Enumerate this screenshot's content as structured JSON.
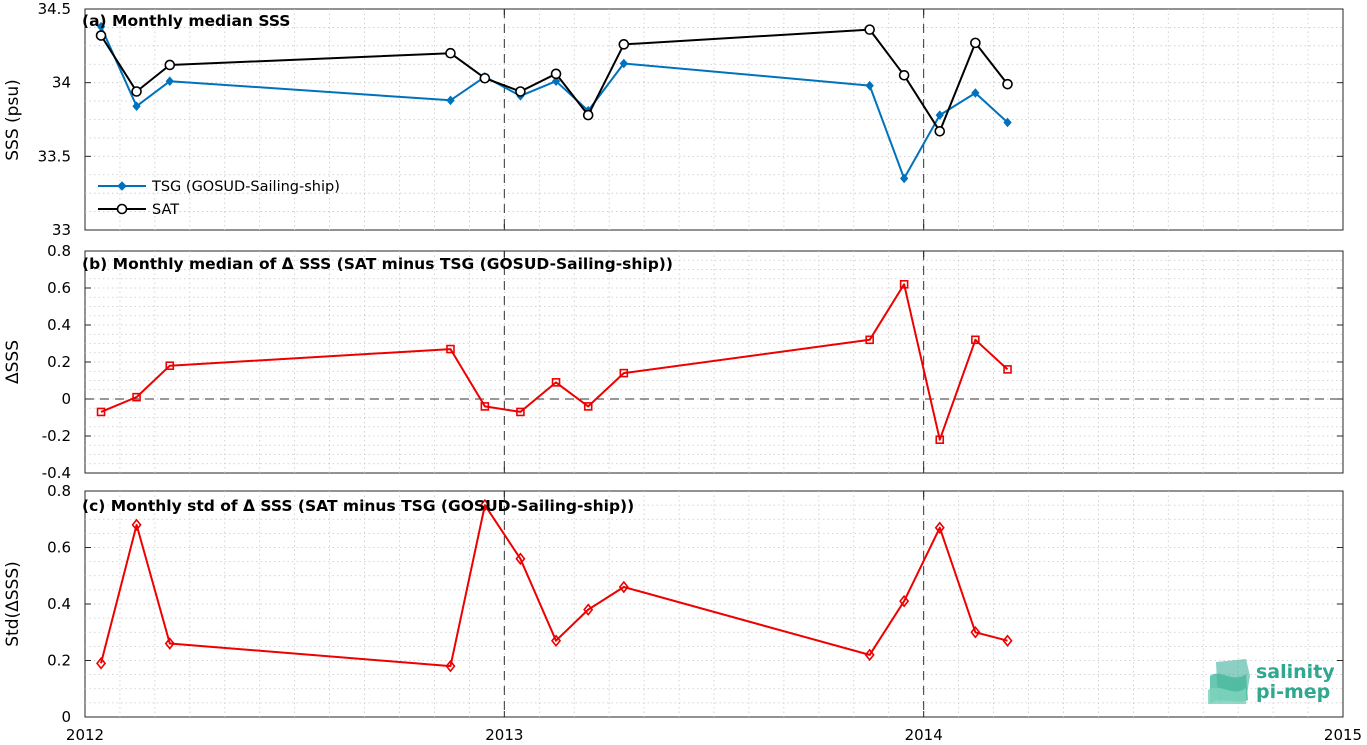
{
  "chart_data": [
    {
      "panel": "a",
      "type": "line",
      "title": "(a) Monthly median SSS",
      "ylabel": "SSS (psu)",
      "ylim": [
        33,
        34.5
      ],
      "yticks": [
        "33",
        "33.5",
        "34",
        "34.5"
      ],
      "xlim": [
        "2012-01-01",
        "2015-01-01"
      ],
      "xticks": [
        "2012",
        "2013",
        "2014",
        "2015"
      ],
      "grid": true,
      "legend_position": "lower-left",
      "dashed_lines_x": [
        "2013-01-01",
        "2014-01-01"
      ],
      "series": [
        {
          "name": "TSG (GOSUD-Sailing-ship)",
          "color": "#0072bd",
          "marker": "diamond",
          "x": [
            "2012-01-15",
            "2012-02-15",
            "2012-03-15",
            "2012-11-15",
            "2012-12-15",
            "2013-01-15",
            "2013-02-15",
            "2013-03-15",
            "2013-04-15",
            "2013-11-15",
            "2013-12-15",
            "2014-01-15",
            "2014-02-15",
            "2014-03-15"
          ],
          "values": [
            34.38,
            33.84,
            34.01,
            33.88,
            34.04,
            33.91,
            34.01,
            33.81,
            34.13,
            33.98,
            33.35,
            33.78,
            33.93,
            33.73
          ]
        },
        {
          "name": "SAT",
          "color": "#000000",
          "marker": "circle",
          "x": [
            "2012-01-15",
            "2012-02-15",
            "2012-03-15",
            "2012-11-15",
            "2012-12-15",
            "2013-01-15",
            "2013-02-15",
            "2013-03-15",
            "2013-04-15",
            "2013-11-15",
            "2013-12-15",
            "2014-01-15",
            "2014-02-15",
            "2014-03-15"
          ],
          "values": [
            34.32,
            33.94,
            34.12,
            34.2,
            34.03,
            33.94,
            34.06,
            33.78,
            34.26,
            34.36,
            34.05,
            33.67,
            34.27,
            33.99
          ]
        }
      ]
    },
    {
      "panel": "b",
      "type": "line",
      "title": "(b) Monthly median of Δ SSS (SAT minus TSG (GOSUD-Sailing-ship))",
      "ylabel": "ΔSSS",
      "ylim": [
        -0.4,
        0.8
      ],
      "yticks": [
        "-0.4",
        "-0.2",
        "0",
        "0.2",
        "0.4",
        "0.6",
        "0.8"
      ],
      "xlim": [
        "2012-01-01",
        "2015-01-01"
      ],
      "grid": true,
      "dashed_lines_x": [
        "2013-01-01",
        "2014-01-01"
      ],
      "dashed_line_y": 0,
      "series": [
        {
          "color": "#ee0000",
          "marker": "square",
          "x": [
            "2012-01-15",
            "2012-02-15",
            "2012-03-15",
            "2012-11-15",
            "2012-12-15",
            "2013-01-15",
            "2013-02-15",
            "2013-03-15",
            "2013-04-15",
            "2013-11-15",
            "2013-12-15",
            "2014-01-15",
            "2014-02-15",
            "2014-03-15"
          ],
          "values": [
            -0.07,
            0.01,
            0.18,
            0.27,
            -0.04,
            -0.07,
            0.09,
            -0.04,
            0.14,
            0.32,
            0.62,
            -0.22,
            0.32,
            0.16
          ]
        }
      ]
    },
    {
      "panel": "c",
      "type": "line",
      "title": "(c) Monthly std of Δ SSS (SAT minus TSG (GOSUD-Sailing-ship))",
      "ylabel": "Std(ΔSSS)",
      "ylim": [
        0,
        0.8
      ],
      "yticks": [
        "0",
        "0.2",
        "0.4",
        "0.6",
        "0.8"
      ],
      "xlim": [
        "2012-01-01",
        "2015-01-01"
      ],
      "grid": true,
      "dashed_lines_x": [
        "2013-01-01",
        "2014-01-01"
      ],
      "series": [
        {
          "color": "#ee0000",
          "marker": "diamond-open",
          "x": [
            "2012-01-15",
            "2012-02-15",
            "2012-03-15",
            "2012-11-15",
            "2012-12-15",
            "2013-01-15",
            "2013-02-15",
            "2013-03-15",
            "2013-04-15",
            "2013-11-15",
            "2013-12-15",
            "2014-01-15",
            "2014-02-15",
            "2014-03-15"
          ],
          "values": [
            0.19,
            0.68,
            0.26,
            0.18,
            0.75,
            0.56,
            0.27,
            0.38,
            0.46,
            0.22,
            0.41,
            0.67,
            0.3,
            0.27
          ]
        }
      ]
    }
  ],
  "logo": {
    "line1": "salinity",
    "line2": "pi-mep",
    "color": "#2fa88f"
  }
}
